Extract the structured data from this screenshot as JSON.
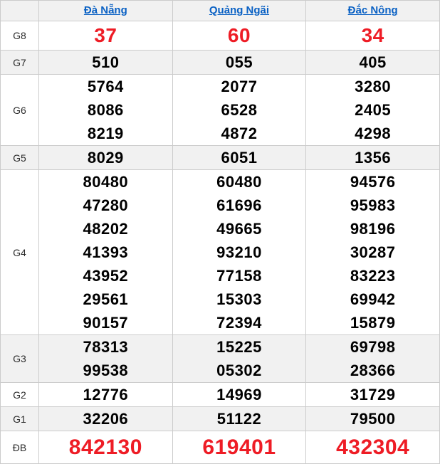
{
  "colors": {
    "highlight_red": "#ee1c25",
    "header_link_blue": "#0a61c4",
    "stripe_bg": "#f1f1f1",
    "border": "#cccccc",
    "number_black": "#000000"
  },
  "table": {
    "columns": [
      "Đà Nẵng",
      "Quảng Ngãi",
      "Đắc Nông"
    ],
    "rows": [
      {
        "label": "G8",
        "style": "red-lg",
        "values": [
          [
            "37"
          ],
          [
            "60"
          ],
          [
            "34"
          ]
        ]
      },
      {
        "label": "G7",
        "style": "normal",
        "values": [
          [
            "510"
          ],
          [
            "055"
          ],
          [
            "405"
          ]
        ]
      },
      {
        "label": "G6",
        "style": "normal",
        "values": [
          [
            "5764",
            "8086",
            "8219"
          ],
          [
            "2077",
            "6528",
            "4872"
          ],
          [
            "3280",
            "2405",
            "4298"
          ]
        ]
      },
      {
        "label": "G5",
        "style": "normal",
        "values": [
          [
            "8029"
          ],
          [
            "6051"
          ],
          [
            "1356"
          ]
        ]
      },
      {
        "label": "G4",
        "style": "normal",
        "values": [
          [
            "80480",
            "47280",
            "48202",
            "41393",
            "43952",
            "29561",
            "90157"
          ],
          [
            "60480",
            "61696",
            "49665",
            "93210",
            "77158",
            "15303",
            "72394"
          ],
          [
            "94576",
            "95983",
            "98196",
            "30287",
            "83223",
            "69942",
            "15879"
          ]
        ]
      },
      {
        "label": "G3",
        "style": "normal",
        "values": [
          [
            "78313",
            "99538"
          ],
          [
            "15225",
            "05302"
          ],
          [
            "69798",
            "28366"
          ]
        ]
      },
      {
        "label": "G2",
        "style": "normal",
        "values": [
          [
            "12776"
          ],
          [
            "14969"
          ],
          [
            "31729"
          ]
        ]
      },
      {
        "label": "G1",
        "style": "normal",
        "values": [
          [
            "32206"
          ],
          [
            "51122"
          ],
          [
            "79500"
          ]
        ]
      },
      {
        "label": "ĐB",
        "style": "red-xl",
        "values": [
          [
            "842130"
          ],
          [
            "619401"
          ],
          [
            "432304"
          ]
        ]
      }
    ]
  }
}
